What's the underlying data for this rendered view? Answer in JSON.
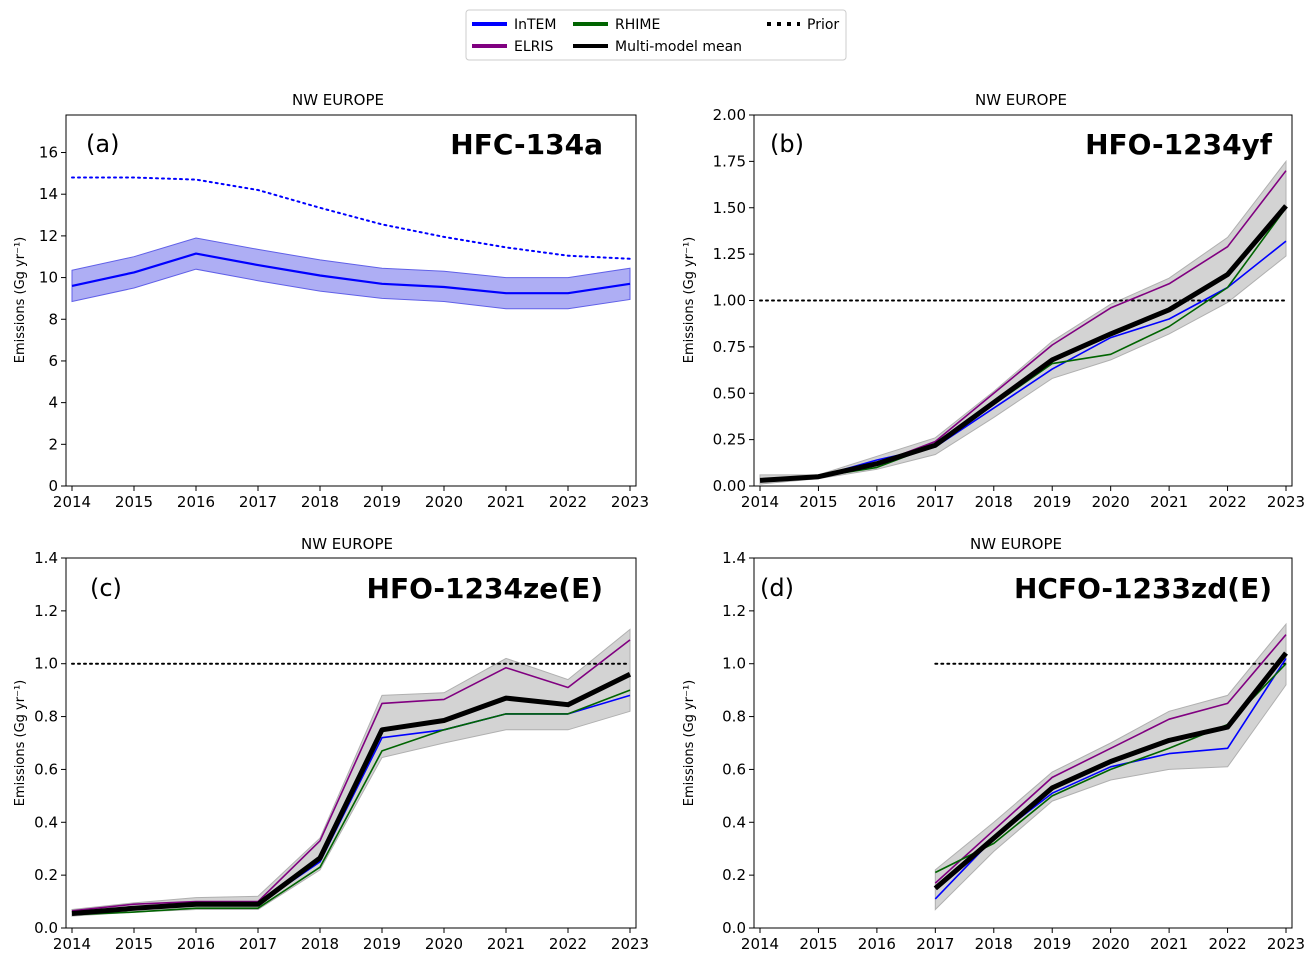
{
  "legend": {
    "items": [
      {
        "key": "intem",
        "label": "InTEM",
        "color": "#0000ff",
        "style": "solid"
      },
      {
        "key": "elris",
        "label": "ELRIS",
        "color": "#800080",
        "style": "solid"
      },
      {
        "key": "rhime",
        "label": "RHIME",
        "color": "#006400",
        "style": "solid"
      },
      {
        "key": "mean",
        "label": "Multi-model mean",
        "color": "#000000",
        "style": "solid-thick"
      },
      {
        "key": "prior",
        "label": "Prior",
        "color": "#000000",
        "style": "dotted"
      }
    ]
  },
  "colors": {
    "intem": "#0000ff",
    "elris": "#800080",
    "rhime": "#006400",
    "mean": "#000000",
    "band_blue": "#8c8cf0",
    "band_gray": "#c8c8c8"
  },
  "chart_data": [
    {
      "type": "line",
      "panel": "(a)",
      "compound": "HFC-134a",
      "title": "NW EUROPE",
      "ylabel": "Emissions (Gg yr⁻¹)",
      "xlabel": "",
      "x": [
        2014,
        2015,
        2016,
        2017,
        2018,
        2019,
        2020,
        2021,
        2022,
        2023
      ],
      "xticks": [
        "2014",
        "2015",
        "2016",
        "2017",
        "2018",
        "2019",
        "2020",
        "2021",
        "2022",
        "2023"
      ],
      "ylim": [
        0,
        17.8
      ],
      "yticks": [
        "0",
        "2",
        "4",
        "6",
        "8",
        "10",
        "12",
        "14",
        "16"
      ],
      "grid": false,
      "series": [
        {
          "name": "InTEM",
          "values": [
            9.6,
            10.25,
            11.15,
            10.6,
            10.1,
            9.7,
            9.55,
            9.25,
            9.25,
            9.7
          ],
          "lower": [
            8.85,
            9.5,
            10.4,
            9.85,
            9.35,
            9.0,
            8.85,
            8.5,
            8.5,
            8.95
          ],
          "upper": [
            10.35,
            11.0,
            11.9,
            11.35,
            10.85,
            10.45,
            10.3,
            10.0,
            10.0,
            10.45
          ]
        },
        {
          "name": "Prior",
          "values": [
            14.8,
            14.8,
            14.7,
            14.2,
            13.35,
            12.55,
            11.95,
            11.45,
            11.05,
            10.9
          ]
        }
      ]
    },
    {
      "type": "line",
      "panel": "(b)",
      "compound": "HFO-1234yf",
      "title": "NW EUROPE",
      "ylabel": "Emissions (Gg yr⁻¹)",
      "xlabel": "",
      "x": [
        2014,
        2015,
        2016,
        2017,
        2018,
        2019,
        2020,
        2021,
        2022,
        2023
      ],
      "xticks": [
        "2014",
        "2015",
        "2016",
        "2017",
        "2018",
        "2019",
        "2020",
        "2021",
        "2022",
        "2023"
      ],
      "ylim": [
        0,
        2.0
      ],
      "yticks": [
        "0.00",
        "0.25",
        "0.50",
        "0.75",
        "1.00",
        "1.25",
        "1.50",
        "1.75",
        "2.00"
      ],
      "grid": false,
      "series": [
        {
          "name": "InTEM",
          "values": [
            0.03,
            0.05,
            0.14,
            0.21,
            0.42,
            0.63,
            0.8,
            0.9,
            1.07,
            1.32
          ]
        },
        {
          "name": "ELRIS",
          "values": [
            0.03,
            0.05,
            0.12,
            0.24,
            0.5,
            0.76,
            0.96,
            1.09,
            1.29,
            1.7
          ]
        },
        {
          "name": "RHIME",
          "values": [
            0.03,
            0.05,
            0.1,
            0.22,
            0.44,
            0.66,
            0.71,
            0.86,
            1.07,
            1.5
          ]
        },
        {
          "name": "Multi-model mean",
          "values": [
            0.03,
            0.05,
            0.12,
            0.22,
            0.45,
            0.68,
            0.82,
            0.95,
            1.14,
            1.51
          ],
          "lower": [
            0.01,
            0.04,
            0.09,
            0.17,
            0.37,
            0.58,
            0.68,
            0.82,
            0.99,
            1.24
          ],
          "upper": [
            0.06,
            0.06,
            0.16,
            0.26,
            0.51,
            0.78,
            0.98,
            1.12,
            1.34,
            1.75
          ]
        },
        {
          "name": "Prior",
          "values": [
            1.0,
            1.0,
            1.0,
            1.0,
            1.0,
            1.0,
            1.0,
            1.0,
            1.0,
            1.0
          ]
        }
      ]
    },
    {
      "type": "line",
      "panel": "(c)",
      "compound": "HFO-1234ze(E)",
      "title": "NW EUROPE",
      "ylabel": "Emissions (Gg yr⁻¹)",
      "xlabel": "",
      "x": [
        2014,
        2015,
        2016,
        2017,
        2018,
        2019,
        2020,
        2021,
        2022,
        2023
      ],
      "xticks": [
        "2014",
        "2015",
        "2016",
        "2017",
        "2018",
        "2019",
        "2020",
        "2021",
        "2022",
        "2023"
      ],
      "ylim": [
        0,
        1.4
      ],
      "yticks": [
        "0.0",
        "0.2",
        "0.4",
        "0.6",
        "0.8",
        "1.0",
        "1.2",
        "1.4"
      ],
      "grid": false,
      "series": [
        {
          "name": "InTEM",
          "values": [
            0.05,
            0.08,
            0.09,
            0.09,
            0.25,
            0.72,
            0.75,
            0.81,
            0.81,
            0.88
          ]
        },
        {
          "name": "ELRIS",
          "values": [
            0.065,
            0.09,
            0.1,
            0.1,
            0.33,
            0.85,
            0.865,
            0.985,
            0.91,
            1.09
          ]
        },
        {
          "name": "RHIME",
          "values": [
            0.05,
            0.06,
            0.075,
            0.075,
            0.23,
            0.67,
            0.75,
            0.81,
            0.81,
            0.9
          ]
        },
        {
          "name": "Multi-model mean",
          "values": [
            0.055,
            0.075,
            0.09,
            0.09,
            0.265,
            0.75,
            0.785,
            0.87,
            0.845,
            0.96
          ],
          "lower": [
            0.045,
            0.06,
            0.07,
            0.07,
            0.22,
            0.645,
            0.7,
            0.75,
            0.75,
            0.82
          ],
          "upper": [
            0.07,
            0.095,
            0.115,
            0.12,
            0.34,
            0.88,
            0.89,
            1.02,
            0.94,
            1.13
          ]
        },
        {
          "name": "Prior",
          "values": [
            1.0,
            1.0,
            1.0,
            1.0,
            1.0,
            1.0,
            1.0,
            1.0,
            1.0,
            1.0
          ]
        }
      ]
    },
    {
      "type": "line",
      "panel": "(d)",
      "compound": "HCFO-1233zd(E)",
      "title": "NW EUROPE",
      "ylabel": "Emissions (Gg yr⁻¹)",
      "xlabel": "",
      "x": [
        2014,
        2015,
        2016,
        2017,
        2018,
        2019,
        2020,
        2021,
        2022,
        2023
      ],
      "xticks": [
        "2014",
        "2015",
        "2016",
        "2017",
        "2018",
        "2019",
        "2020",
        "2021",
        "2022",
        "2023"
      ],
      "ylim": [
        0,
        1.4
      ],
      "yticks": [
        "0.0",
        "0.2",
        "0.4",
        "0.6",
        "0.8",
        "1.0",
        "1.2",
        "1.4"
      ],
      "grid": false,
      "series": [
        {
          "name": "InTEM",
          "values": [
            null,
            null,
            null,
            0.11,
            0.34,
            0.51,
            0.61,
            0.66,
            0.68,
            1.02
          ]
        },
        {
          "name": "ELRIS",
          "values": [
            null,
            null,
            null,
            0.17,
            0.37,
            0.57,
            0.68,
            0.79,
            0.85,
            1.11
          ]
        },
        {
          "name": "RHIME",
          "values": [
            null,
            null,
            null,
            0.21,
            0.32,
            0.5,
            0.6,
            0.68,
            0.77,
            1.0
          ]
        },
        {
          "name": "Multi-model mean",
          "values": [
            null,
            null,
            null,
            0.15,
            0.34,
            0.53,
            0.63,
            0.71,
            0.76,
            1.04
          ],
          "lower": [
            null,
            null,
            null,
            0.07,
            0.29,
            0.48,
            0.56,
            0.6,
            0.61,
            0.92
          ],
          "upper": [
            null,
            null,
            null,
            0.22,
            0.4,
            0.59,
            0.7,
            0.82,
            0.88,
            1.15
          ]
        },
        {
          "name": "Prior",
          "values": [
            null,
            null,
            null,
            1.0,
            1.0,
            1.0,
            1.0,
            1.0,
            1.0,
            1.0
          ]
        }
      ]
    }
  ]
}
